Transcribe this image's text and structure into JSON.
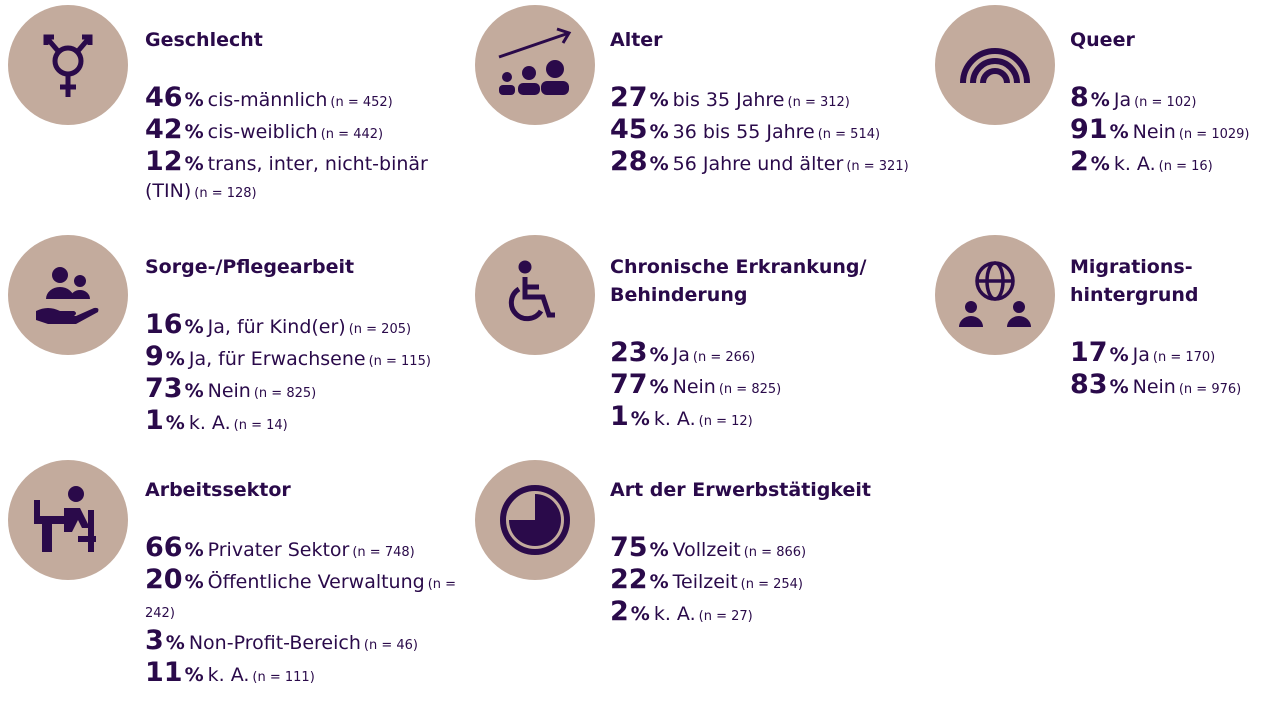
{
  "unit": "%",
  "sections": [
    {
      "title": "Geschlecht",
      "items": [
        {
          "value": 46,
          "label": "cis-männlich",
          "n": "(n = 452)"
        },
        {
          "value": 42,
          "label": "cis-weiblich",
          "n": "(n = 442)"
        },
        {
          "value": 12,
          "label": "trans, inter, nicht-binär (TIN)",
          "n": "(n = 128)"
        }
      ]
    },
    {
      "title": "Alter",
      "items": [
        {
          "value": 27,
          "label": "bis 35 Jahre",
          "n": "(n = 312)"
        },
        {
          "value": 45,
          "label": "36 bis 55 Jahre",
          "n": "(n = 514)"
        },
        {
          "value": 28,
          "label": "56 Jahre und älter",
          "n": "(n = 321)"
        }
      ]
    },
    {
      "title": "Queer",
      "items": [
        {
          "value": 8,
          "label": "Ja",
          "n": "(n = 102)"
        },
        {
          "value": 91,
          "label": "Nein",
          "n": "(n = 1029)"
        },
        {
          "value": 2,
          "label": "k. A.",
          "n": "(n = 16)"
        }
      ]
    },
    {
      "title": "Sorge-/Pflegearbeit",
      "items": [
        {
          "value": 16,
          "label": "Ja, für Kind(er)",
          "n": "(n = 205)"
        },
        {
          "value": 9,
          "label": "Ja, für Erwachsene",
          "n": "(n = 115)"
        },
        {
          "value": 73,
          "label": "Nein",
          "n": "(n = 825)"
        },
        {
          "value": 1,
          "label": "k. A.",
          "n": "(n  = 14)"
        }
      ]
    },
    {
      "title": "Chronische Erkrankung/\nBehinderung",
      "items": [
        {
          "value": 23,
          "label": "Ja",
          "n": "(n = 266)"
        },
        {
          "value": 77,
          "label": "Nein",
          "n": "(n = 825)"
        },
        {
          "value": 1,
          "label": "k. A.",
          "n": "(n = 12)"
        }
      ]
    },
    {
      "title": "Migrations-\nhintergrund",
      "items": [
        {
          "value": 17,
          "label": "Ja",
          "n": "(n = 170)"
        },
        {
          "value": 83,
          "label": "Nein",
          "n": "(n = 976)"
        }
      ]
    },
    {
      "title": "Arbeitssektor",
      "items": [
        {
          "value": 66,
          "label": "Privater Sektor",
          "n": "(n = 748)"
        },
        {
          "value": 20,
          "label": "Öffentliche Verwaltung",
          "n": "(n = 242)"
        },
        {
          "value": 3,
          "label": "Non-Profit-Bereich",
          "n": "(n = 46)"
        },
        {
          "value": 11,
          "label": "k. A.",
          "n": "(n = 111)"
        }
      ]
    },
    {
      "title": "Art der Erwerbstätigkeit",
      "items": [
        {
          "value": 75,
          "label": "Vollzeit",
          "n": "(n = 866)"
        },
        {
          "value": 22,
          "label": "Teilzeit",
          "n": "(n = 254)"
        },
        {
          "value": 2,
          "label": "k. A.",
          "n": "(n = 27)"
        }
      ]
    }
  ]
}
